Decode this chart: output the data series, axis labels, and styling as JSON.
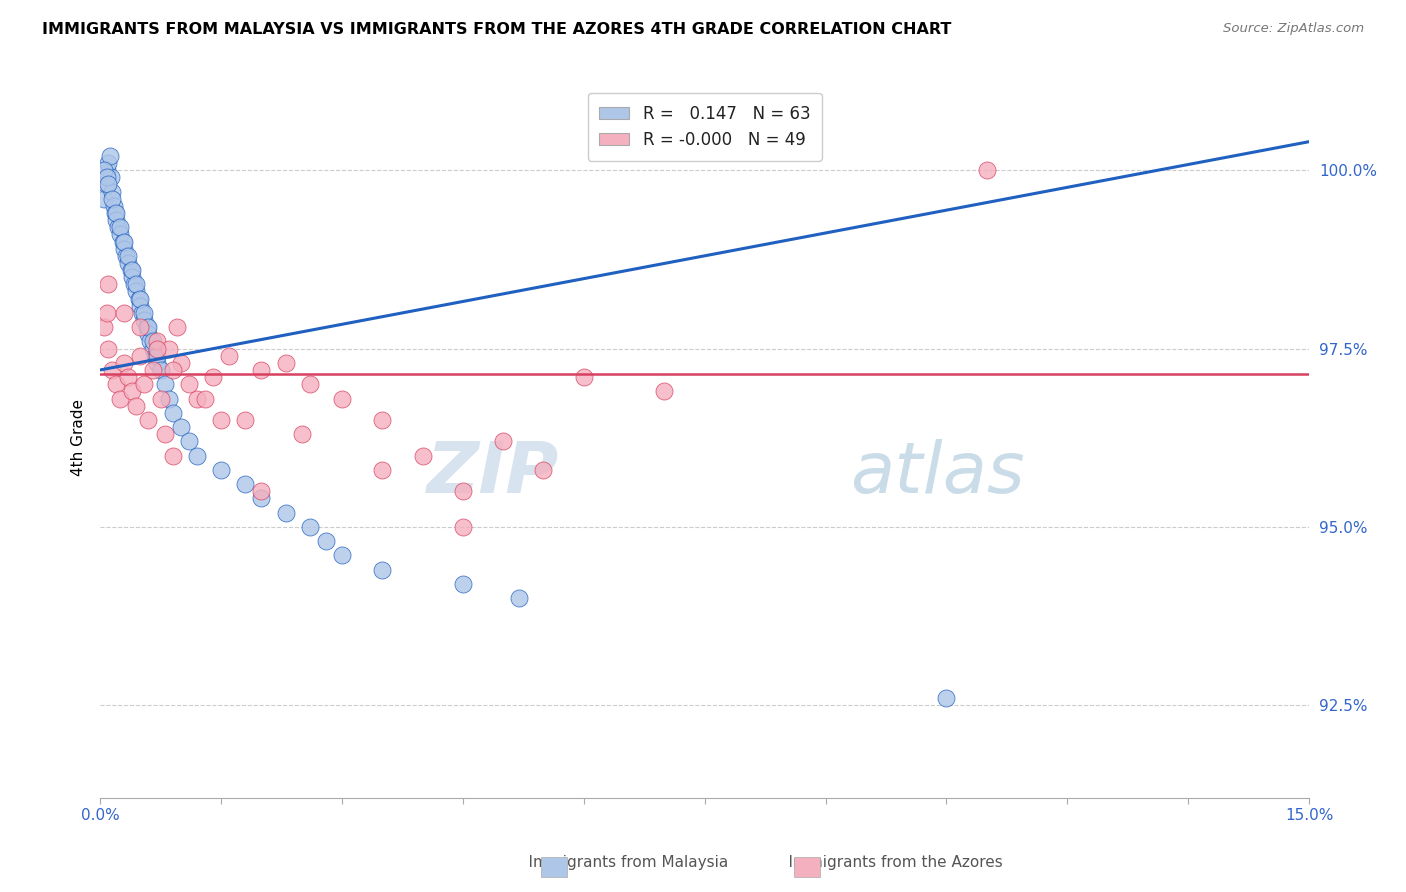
{
  "title": "IMMIGRANTS FROM MALAYSIA VS IMMIGRANTS FROM THE AZORES 4TH GRADE CORRELATION CHART",
  "source": "Source: ZipAtlas.com",
  "ylabel": "4th Grade",
  "yticks": [
    92.5,
    95.0,
    97.5,
    100.0
  ],
  "ytick_labels": [
    "92.5%",
    "95.0%",
    "97.5%",
    "100.0%"
  ],
  "xmin": 0.0,
  "xmax": 15.0,
  "ymin": 91.2,
  "ymax": 101.3,
  "R_blue": 0.147,
  "N_blue": 63,
  "R_pink": -0.0,
  "N_pink": 49,
  "blue_color": "#aec6e8",
  "pink_color": "#f4b0be",
  "trend_blue": "#2060c0",
  "trend_pink": "#d84060",
  "watermark_color": "#d0dff0",
  "blue_x": [
    0.05,
    0.07,
    0.08,
    0.1,
    0.12,
    0.13,
    0.15,
    0.17,
    0.18,
    0.2,
    0.22,
    0.25,
    0.28,
    0.3,
    0.32,
    0.35,
    0.38,
    0.4,
    0.42,
    0.45,
    0.48,
    0.5,
    0.52,
    0.55,
    0.58,
    0.6,
    0.62,
    0.65,
    0.68,
    0.7,
    0.05,
    0.08,
    0.1,
    0.15,
    0.2,
    0.25,
    0.3,
    0.35,
    0.4,
    0.45,
    0.5,
    0.55,
    0.6,
    0.65,
    0.7,
    0.75,
    0.8,
    0.85,
    0.9,
    1.0,
    1.1,
    1.2,
    1.5,
    1.8,
    2.0,
    2.3,
    2.6,
    2.8,
    3.0,
    3.5,
    4.5,
    5.2,
    10.5
  ],
  "blue_y": [
    99.6,
    99.8,
    100.0,
    100.1,
    100.2,
    99.9,
    99.7,
    99.5,
    99.4,
    99.3,
    99.2,
    99.1,
    99.0,
    98.9,
    98.8,
    98.7,
    98.6,
    98.5,
    98.4,
    98.3,
    98.2,
    98.1,
    98.0,
    97.9,
    97.8,
    97.7,
    97.6,
    97.5,
    97.4,
    97.3,
    100.0,
    99.9,
    99.8,
    99.6,
    99.4,
    99.2,
    99.0,
    98.8,
    98.6,
    98.4,
    98.2,
    98.0,
    97.8,
    97.6,
    97.4,
    97.2,
    97.0,
    96.8,
    96.6,
    96.4,
    96.2,
    96.0,
    95.8,
    95.6,
    95.4,
    95.2,
    95.0,
    94.8,
    94.6,
    94.4,
    94.2,
    94.0,
    92.6
  ],
  "pink_x": [
    0.05,
    0.08,
    0.1,
    0.15,
    0.2,
    0.25,
    0.3,
    0.35,
    0.4,
    0.45,
    0.5,
    0.55,
    0.6,
    0.65,
    0.7,
    0.75,
    0.8,
    0.85,
    0.9,
    0.95,
    1.0,
    1.2,
    1.4,
    1.6,
    1.8,
    2.0,
    2.3,
    2.6,
    3.0,
    3.5,
    4.0,
    4.5,
    5.0,
    5.5,
    6.0,
    7.0,
    0.1,
    0.3,
    0.5,
    0.7,
    0.9,
    1.1,
    1.3,
    1.5,
    2.0,
    2.5,
    3.5,
    4.5,
    11.0
  ],
  "pink_y": [
    97.8,
    98.0,
    97.5,
    97.2,
    97.0,
    96.8,
    97.3,
    97.1,
    96.9,
    96.7,
    97.4,
    97.0,
    96.5,
    97.2,
    97.6,
    96.8,
    96.3,
    97.5,
    96.0,
    97.8,
    97.3,
    96.8,
    97.1,
    97.4,
    96.5,
    97.2,
    97.3,
    97.0,
    96.8,
    96.5,
    96.0,
    95.5,
    96.2,
    95.8,
    97.1,
    96.9,
    98.4,
    98.0,
    97.8,
    97.5,
    97.2,
    97.0,
    96.8,
    96.5,
    95.5,
    96.3,
    95.8,
    95.0,
    100.0
  ]
}
